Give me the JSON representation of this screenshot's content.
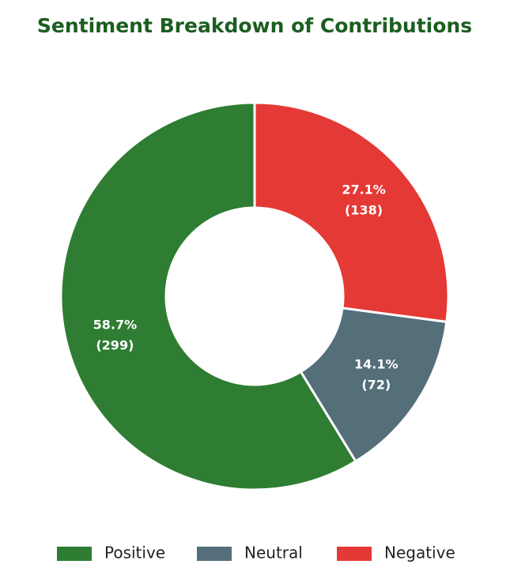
{
  "chart_data": {
    "type": "donut",
    "title": "Sentiment Breakdown of Contributions",
    "categories": [
      "Positive",
      "Neutral",
      "Negative"
    ],
    "values": [
      299,
      72,
      138
    ],
    "value_labels": [
      "(299)",
      "(72)",
      "(138)"
    ],
    "percentages": [
      58.7,
      14.1,
      27.1
    ],
    "percentage_labels": [
      "58.7%",
      "14.1%",
      "27.1%"
    ],
    "colors": [
      "#2e7d32",
      "#546e7a",
      "#e53935"
    ],
    "direction": "counterclockwise",
    "legend": "bottom"
  }
}
